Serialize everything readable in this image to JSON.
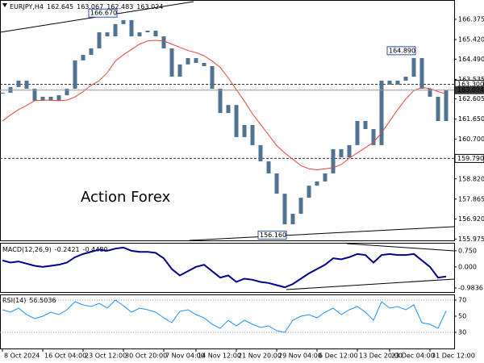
{
  "chart_data": [
    {
      "type": "candlestick",
      "title": "EURJPY,H4",
      "header_values": [
        162.645,
        163.067,
        162.483,
        163.024
      ],
      "watermark": "Action Forex",
      "categories": [
        "8 Oct 2024",
        null,
        null,
        null,
        null,
        "16 Oct 04:00",
        null,
        null,
        null,
        null,
        "23 Oct 12:00",
        null,
        null,
        null,
        null,
        "30 Oct 20:00",
        null,
        null,
        null,
        null,
        "7 Nov 04:00",
        null,
        null,
        null,
        "14 Nov 12:00",
        null,
        null,
        null,
        null,
        "21 Nov 20:00",
        null,
        null,
        null,
        null,
        "29 Nov 04:00",
        null,
        null,
        null,
        null,
        "6 Dec 12:00",
        null,
        null,
        null,
        null,
        "13 Dec 20:00",
        null,
        null,
        null,
        "23 Dec 04:00",
        null,
        null,
        null,
        null,
        "31 Dec 12:00",
        null,
        null
      ],
      "series": [
        {
          "color": "#4f7390",
          "values": [
            162.9,
            163.17,
            163.47,
            163.09,
            162.52,
            162.71,
            162.52,
            162.78,
            163.09,
            164.43,
            164.69,
            165.0,
            165.76,
            165.57,
            166.15,
            166.34,
            165.57,
            165.76,
            165.84,
            165.57,
            165.0,
            163.66,
            164.24,
            164.54,
            164.31,
            164.16,
            163.09,
            161.94,
            162.32,
            160.8,
            161.37,
            160.42,
            159.65,
            159.08,
            158.12,
            156.67,
            157.17,
            157.93,
            158.5,
            158.7,
            159.08,
            160.23,
            159.84,
            160.42,
            161.56,
            161.18,
            160.42,
            163.47,
            163.28,
            163.47,
            163.66,
            164.54,
            163.09,
            162.71,
            161.56,
            163.024
          ]
        },
        {
          "color": "#e8453c",
          "values": [
            161.56,
            161.85,
            162.1,
            162.3,
            162.52,
            162.55,
            162.55,
            162.52,
            162.55,
            162.7,
            162.95,
            163.25,
            163.47,
            163.85,
            164.4,
            164.7,
            164.95,
            165.2,
            165.35,
            165.38,
            165.35,
            165.2,
            165.05,
            164.9,
            164.8,
            164.65,
            164.4,
            164.1,
            163.6,
            163.05,
            162.5,
            161.9,
            161.4,
            160.9,
            160.4,
            160.05,
            159.75,
            159.45,
            159.3,
            159.25,
            159.3,
            159.35,
            159.5,
            159.8,
            160.05,
            160.3,
            160.55,
            161.0,
            161.55,
            162.1,
            162.6,
            163.0,
            163.15,
            163.1,
            162.95,
            162.85
          ]
        }
      ],
      "ylim": [
        155.91,
        167.29
      ],
      "yticks": [
        166.375,
        {
          "value": 165.42,
          "label": "165.420"
        },
        {
          "value": 164.49,
          "label": "164.490"
        },
        163.535,
        162.605,
        {
          "value": 161.65,
          "label": "161.650"
        },
        {
          "value": 160.7,
          "label": "160.700"
        },
        159.745,
        {
          "value": 158.82,
          "label": "158.820"
        },
        157.865,
        {
          "value": 156.92,
          "label": "156.920"
        },
        155.975
      ],
      "levels": [
        {
          "value": 163.3,
          "label": "163.300"
        },
        {
          "value": 159.79,
          "label": "159.790"
        }
      ],
      "last_price": 163.024,
      "annotations": [
        {
          "value": 166.67,
          "label": "166.670"
        },
        {
          "value": 164.89,
          "label": "164.890"
        },
        {
          "value": 156.16,
          "label": "156.160"
        }
      ]
    },
    {
      "type": "line",
      "title": "MACD(12,26,9)",
      "header_values": [
        -0.2421,
        {
          "value": -0.448,
          "label": "-0.4480"
        }
      ],
      "series": [
        {
          "color": "#00008b",
          "values": [
            0.3,
            0.2,
            0.25,
            0.15,
            0.05,
            0.0,
            0.05,
            0.1,
            0.2,
            0.45,
            0.6,
            0.7,
            0.8,
            0.75,
            0.85,
            0.9,
            0.75,
            0.7,
            0.7,
            0.65,
            0.4,
            -0.1,
            -0.4,
            -0.2,
            0.0,
            0.1,
            -0.2,
            -0.5,
            -0.4,
            -0.7,
            -0.55,
            -0.6,
            -0.7,
            -0.75,
            -0.85,
            -0.95,
            -0.8,
            -0.55,
            -0.3,
            -0.1,
            0.1,
            0.4,
            0.35,
            0.45,
            0.6,
            0.55,
            0.2,
            0.55,
            0.6,
            0.55,
            0.55,
            0.6,
            0.3,
            0.0,
            -0.5,
            -0.45
          ]
        }
      ],
      "ylim": [
        -1.17,
        1.12
      ],
      "yticks": [
        {
          "value": 0.75,
          "label": "0.750"
        },
        {
          "value": 0,
          "label": "0.000"
        },
        -0.9836
      ]
    },
    {
      "type": "line",
      "title": "RSI(14)",
      "header_values": [
        56.5036
      ],
      "series": [
        {
          "color": "#1e90ff",
          "values": [
            58,
            55,
            60,
            52,
            47,
            50,
            55,
            52,
            58,
            68,
            64,
            62,
            66,
            60,
            70,
            63,
            55,
            60,
            58,
            55,
            48,
            42,
            56,
            58,
            52,
            48,
            40,
            35,
            45,
            38,
            45,
            40,
            36,
            38,
            32,
            30,
            45,
            50,
            52,
            48,
            55,
            60,
            52,
            58,
            62,
            55,
            45,
            68,
            60,
            62,
            58,
            64,
            42,
            40,
            35,
            56.5
          ]
        }
      ],
      "ylim": [
        10,
        77
      ],
      "yticks": [
        70,
        50,
        30
      ],
      "levels": [
        70,
        30
      ]
    }
  ]
}
